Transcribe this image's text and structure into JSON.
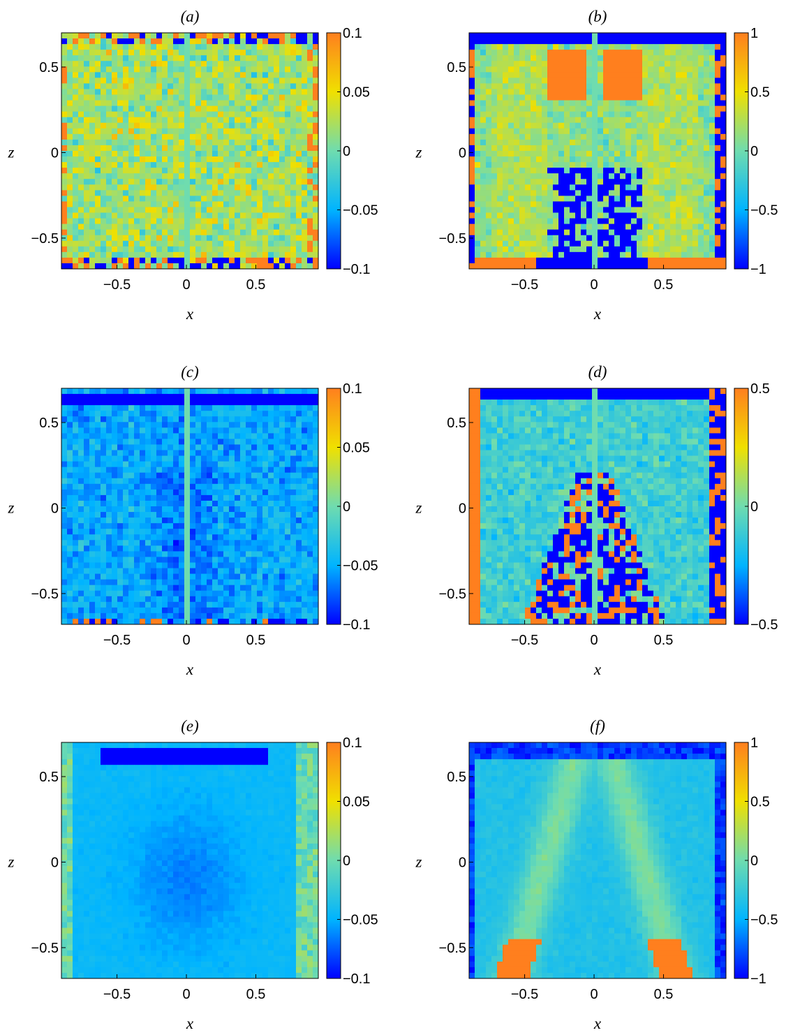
{
  "chart_data": [
    {
      "type": "heatmap",
      "panel": "a",
      "title": "(a)",
      "xlabel": "x",
      "ylabel": "z",
      "xlim": [
        -0.9,
        0.95
      ],
      "ylim": [
        -0.68,
        0.7
      ],
      "xticks": [
        "-0.5",
        "0",
        "0.5"
      ],
      "yticks": [
        "-0.5",
        "0",
        "0.5"
      ],
      "clim": [
        -0.1,
        0.1
      ],
      "colorbar_ticks": [
        "-0.1",
        "-0.05",
        "0",
        "0.05",
        "0.1"
      ],
      "field": {
        "pattern": "noisy",
        "base": 0.02,
        "noise": 0.035,
        "center_bar": true,
        "edge_low": "top-bottom",
        "edge_high": "sides"
      }
    },
    {
      "type": "heatmap",
      "panel": "b",
      "title": "(b)",
      "xlabel": "x",
      "ylabel": "z",
      "xlim": [
        -0.9,
        0.95
      ],
      "ylim": [
        -0.68,
        0.7
      ],
      "xticks": [
        "-0.5",
        "0",
        "0.5"
      ],
      "yticks": [
        "-0.5",
        "0",
        "0.5"
      ],
      "clim": [
        -1,
        1
      ],
      "colorbar_ticks": [
        "-1",
        "-0.5",
        "0",
        "0.5",
        "1"
      ],
      "field": {
        "pattern": "split",
        "base": 0.1,
        "noise": 0.25,
        "center_bar": true
      }
    },
    {
      "type": "heatmap",
      "panel": "c",
      "title": "(c)",
      "xlabel": "x",
      "ylabel": "z",
      "xlim": [
        -0.9,
        0.95
      ],
      "ylim": [
        -0.68,
        0.7
      ],
      "xticks": [
        "-0.5",
        "0",
        "0.5"
      ],
      "yticks": [
        "-0.5",
        "0",
        "0.5"
      ],
      "clim": [
        -0.1,
        0.1
      ],
      "colorbar_ticks": [
        "-0.1",
        "-0.05",
        "0",
        "0.05",
        "0.1"
      ],
      "field": {
        "pattern": "noisy-negative",
        "base": -0.05,
        "noise": 0.02,
        "center_bar": true
      }
    },
    {
      "type": "heatmap",
      "panel": "d",
      "title": "(d)",
      "xlabel": "x",
      "ylabel": "z",
      "xlim": [
        -0.9,
        0.95
      ],
      "ylim": [
        -0.68,
        0.7
      ],
      "xticks": [
        "-0.5",
        "0",
        "0.5"
      ],
      "yticks": [
        "-0.5",
        "0",
        "0.5"
      ],
      "clim": [
        -0.5,
        0.5
      ],
      "colorbar_ticks": [
        "-0.5",
        "0",
        "0.5"
      ],
      "field": {
        "pattern": "cone-noisy",
        "base": -0.1,
        "noise": 0.1,
        "center_bar": true
      }
    },
    {
      "type": "heatmap",
      "panel": "e",
      "title": "(e)",
      "xlabel": "x",
      "ylabel": "z",
      "xlim": [
        -0.9,
        0.95
      ],
      "ylim": [
        -0.68,
        0.7
      ],
      "xticks": [
        "-0.5",
        "0",
        "0.5"
      ],
      "yticks": [
        "-0.5",
        "0",
        "0.5"
      ],
      "clim": [
        -0.1,
        0.1
      ],
      "colorbar_ticks": [
        "-0.1",
        "-0.05",
        "0",
        "0.05",
        "0.1"
      ],
      "field": {
        "pattern": "smooth",
        "base": -0.04,
        "noise": 0.004,
        "center_bar": false
      }
    },
    {
      "type": "heatmap",
      "panel": "f",
      "title": "(f)",
      "xlabel": "x",
      "ylabel": "z",
      "xlim": [
        -0.9,
        0.95
      ],
      "ylim": [
        -0.68,
        0.7
      ],
      "xticks": [
        "-0.5",
        "0",
        "0.5"
      ],
      "yticks": [
        "-0.5",
        "0",
        "0.5"
      ],
      "clim": [
        -1,
        1
      ],
      "colorbar_ticks": [
        "-1",
        "-0.5",
        "0",
        "0.5",
        "1"
      ],
      "field": {
        "pattern": "cone-smooth",
        "base": -0.3,
        "noise": 0.04,
        "center_bar": false
      }
    }
  ],
  "colormap": [
    "#0000ff",
    "#00b4ff",
    "#6fdcaf",
    "#f0e000",
    "#ff7f1e"
  ]
}
